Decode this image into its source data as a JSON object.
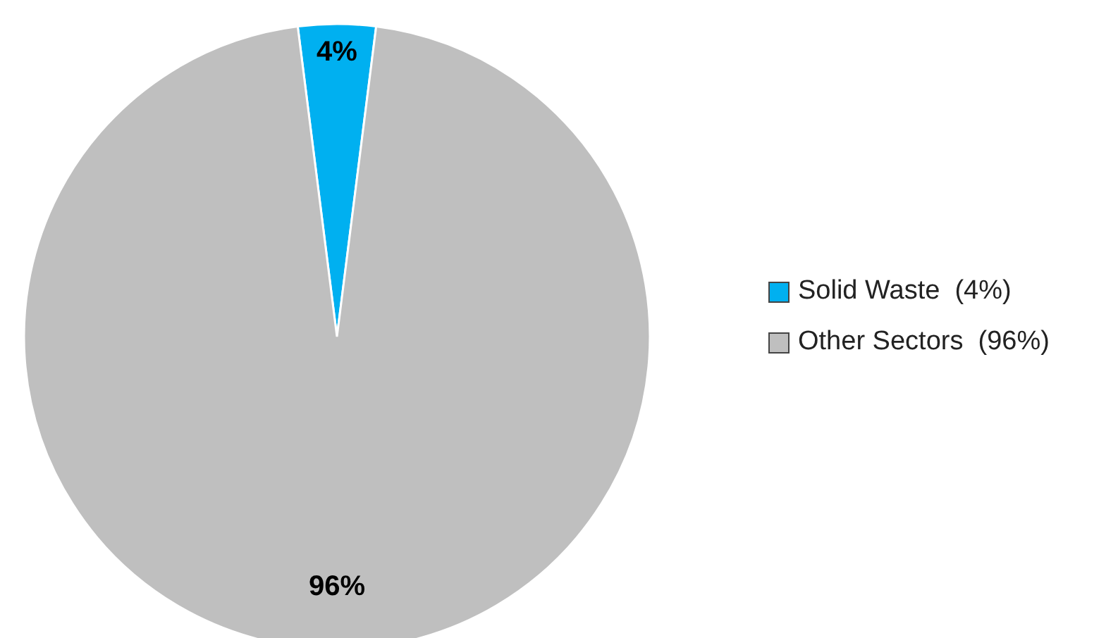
{
  "chart_data": {
    "type": "pie",
    "categories": [
      "Solid Waste  (4%)",
      "Other Sectors  (96%)"
    ],
    "values": [
      4,
      96
    ],
    "colors": [
      "#00b0f0",
      "#bfbfbf"
    ],
    "value_labels": [
      "4%",
      "96%"
    ],
    "legend": "right"
  }
}
